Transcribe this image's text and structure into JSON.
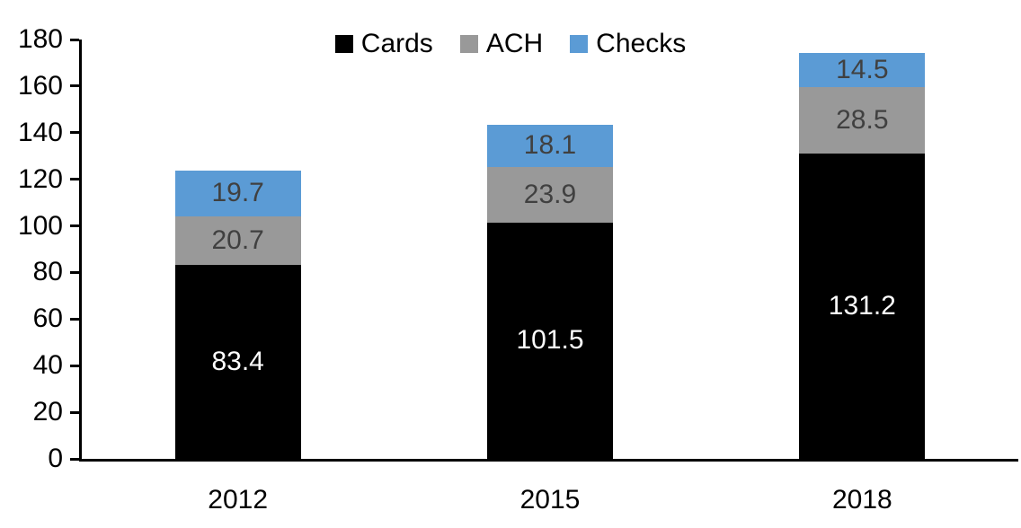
{
  "chart_data": {
    "type": "bar",
    "stacked": true,
    "title": "",
    "xlabel": "",
    "ylabel": "",
    "categories": [
      "2012",
      "2015",
      "2018"
    ],
    "series": [
      {
        "name": "Cards",
        "color": "#000000",
        "label_color": "#FFFFFF",
        "values": [
          83.4,
          101.5,
          131.2
        ]
      },
      {
        "name": "ACH",
        "color": "#999999",
        "label_color": "#404040",
        "values": [
          20.7,
          23.9,
          28.5
        ]
      },
      {
        "name": "Checks",
        "color": "#5B9BD5",
        "label_color": "#404040",
        "values": [
          19.7,
          18.1,
          14.5
        ]
      }
    ],
    "ylim": [
      0,
      180
    ],
    "yticks": [
      0,
      20,
      40,
      60,
      80,
      100,
      120,
      140,
      160,
      180
    ],
    "grid": false,
    "legend_position": "top"
  }
}
